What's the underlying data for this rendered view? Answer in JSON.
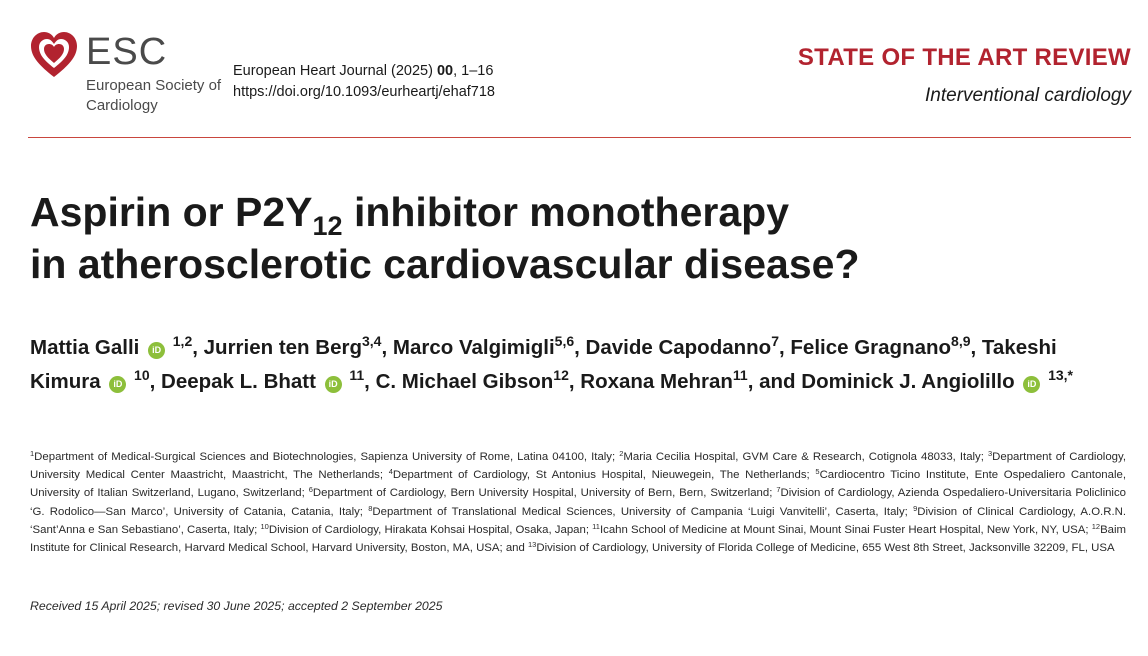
{
  "logo": {
    "acronym": "ESC",
    "name": "European Society of Cardiology",
    "colors": {
      "heart": "#b2232f",
      "text": "#4a4a4a"
    }
  },
  "journal": {
    "citation_name": "European Heart Journal (2025)",
    "volume": "00",
    "pages": ", 1–16",
    "doi": "https://doi.org/10.1093/eurheartj/ehaf718"
  },
  "article": {
    "type": "STATE OF THE ART REVIEW",
    "subject": "Interventional cardiology",
    "accent_color": "#b2232f"
  },
  "title": {
    "part1": "Aspirin or P2Y",
    "subscript": "12",
    "part2": " inhibitor monotherapy",
    "line2": "in atherosclerotic cardiovascular disease?"
  },
  "orcid_icon": {
    "glyph": "iD",
    "color": "#8dbf3b"
  },
  "authors": [
    {
      "name": "Mattia Galli",
      "orcid": true,
      "sup": "1,2",
      "sep": ", "
    },
    {
      "name": "Jurrien ten Berg",
      "orcid": false,
      "sup": "3,4",
      "sep": ", "
    },
    {
      "name": "Marco Valgimigli",
      "orcid": false,
      "sup": "5,6",
      "sep": ", "
    },
    {
      "name": "Davide Capodanno",
      "orcid": false,
      "sup": "7",
      "sep": ", "
    },
    {
      "name": "Felice Gragnano",
      "orcid": false,
      "sup": "8,9",
      "sep": ", "
    },
    {
      "name": "Takeshi Kimura",
      "orcid": true,
      "sup": "10",
      "sep": ", "
    },
    {
      "name": "Deepak L. Bhatt",
      "orcid": true,
      "sup": "11",
      "sep": ", "
    },
    {
      "name": "C. Michael Gibson",
      "orcid": false,
      "sup": "12",
      "sep": ", "
    },
    {
      "name": "Roxana Mehran",
      "orcid": false,
      "sup": "11",
      "sep": ", and "
    },
    {
      "name": "Dominick J. Angiolillo",
      "orcid": true,
      "sup": "13,*",
      "sep": ""
    }
  ],
  "affiliations": [
    {
      "n": "1",
      "text": "Department of Medical-Surgical Sciences and Biotechnologies, Sapienza University of Rome, Latina 04100, Italy; "
    },
    {
      "n": "2",
      "text": "Maria Cecilia Hospital, GVM Care & Research, Cotignola 48033, Italy; "
    },
    {
      "n": "3",
      "text": "Department of Cardiology, University Medical Center Maastricht, Maastricht, The Netherlands; "
    },
    {
      "n": "4",
      "text": "Department of Cardiology, St Antonius Hospital, Nieuwegein, The Netherlands; "
    },
    {
      "n": "5",
      "text": "Cardiocentro Ticino Institute, Ente Ospedaliero Cantonale, University of Italian Switzerland, Lugano, Switzerland; "
    },
    {
      "n": "6",
      "text": "Department of Cardiology, Bern University Hospital, University of Bern, Bern, Switzerland; "
    },
    {
      "n": "7",
      "text": "Division of Cardiology, Azienda Ospedaliero-Universitaria Policlinico ‘G. Rodolico—San Marco’, University of Catania, Catania, Italy; "
    },
    {
      "n": "8",
      "text": "Department of Translational Medical Sciences, University of Campania ‘Luigi Vanvitelli’, Caserta, Italy; "
    },
    {
      "n": "9",
      "text": "Division of Clinical Cardiology, A.O.R.N. ‘Sant’Anna e San Sebastiano’, Caserta, Italy; "
    },
    {
      "n": "10",
      "text": "Division of Cardiology, Hirakata Kohsai Hospital, Osaka, Japan; "
    },
    {
      "n": "11",
      "text": "Icahn School of Medicine at Mount Sinai, Mount Sinai Fuster Heart Hospital, New York, NY, USA; "
    },
    {
      "n": "12",
      "text": "Baim Institute for Clinical Research, Harvard Medical School, Harvard University, Boston, MA, USA; and "
    },
    {
      "n": "13",
      "text": "Division of Cardiology, University of Florida College of Medicine, 655 West 8th Street, Jacksonville 32209, FL, USA"
    }
  ],
  "dates": "Received 15 April 2025; revised 30 June 2025; accepted 2 September 2025"
}
